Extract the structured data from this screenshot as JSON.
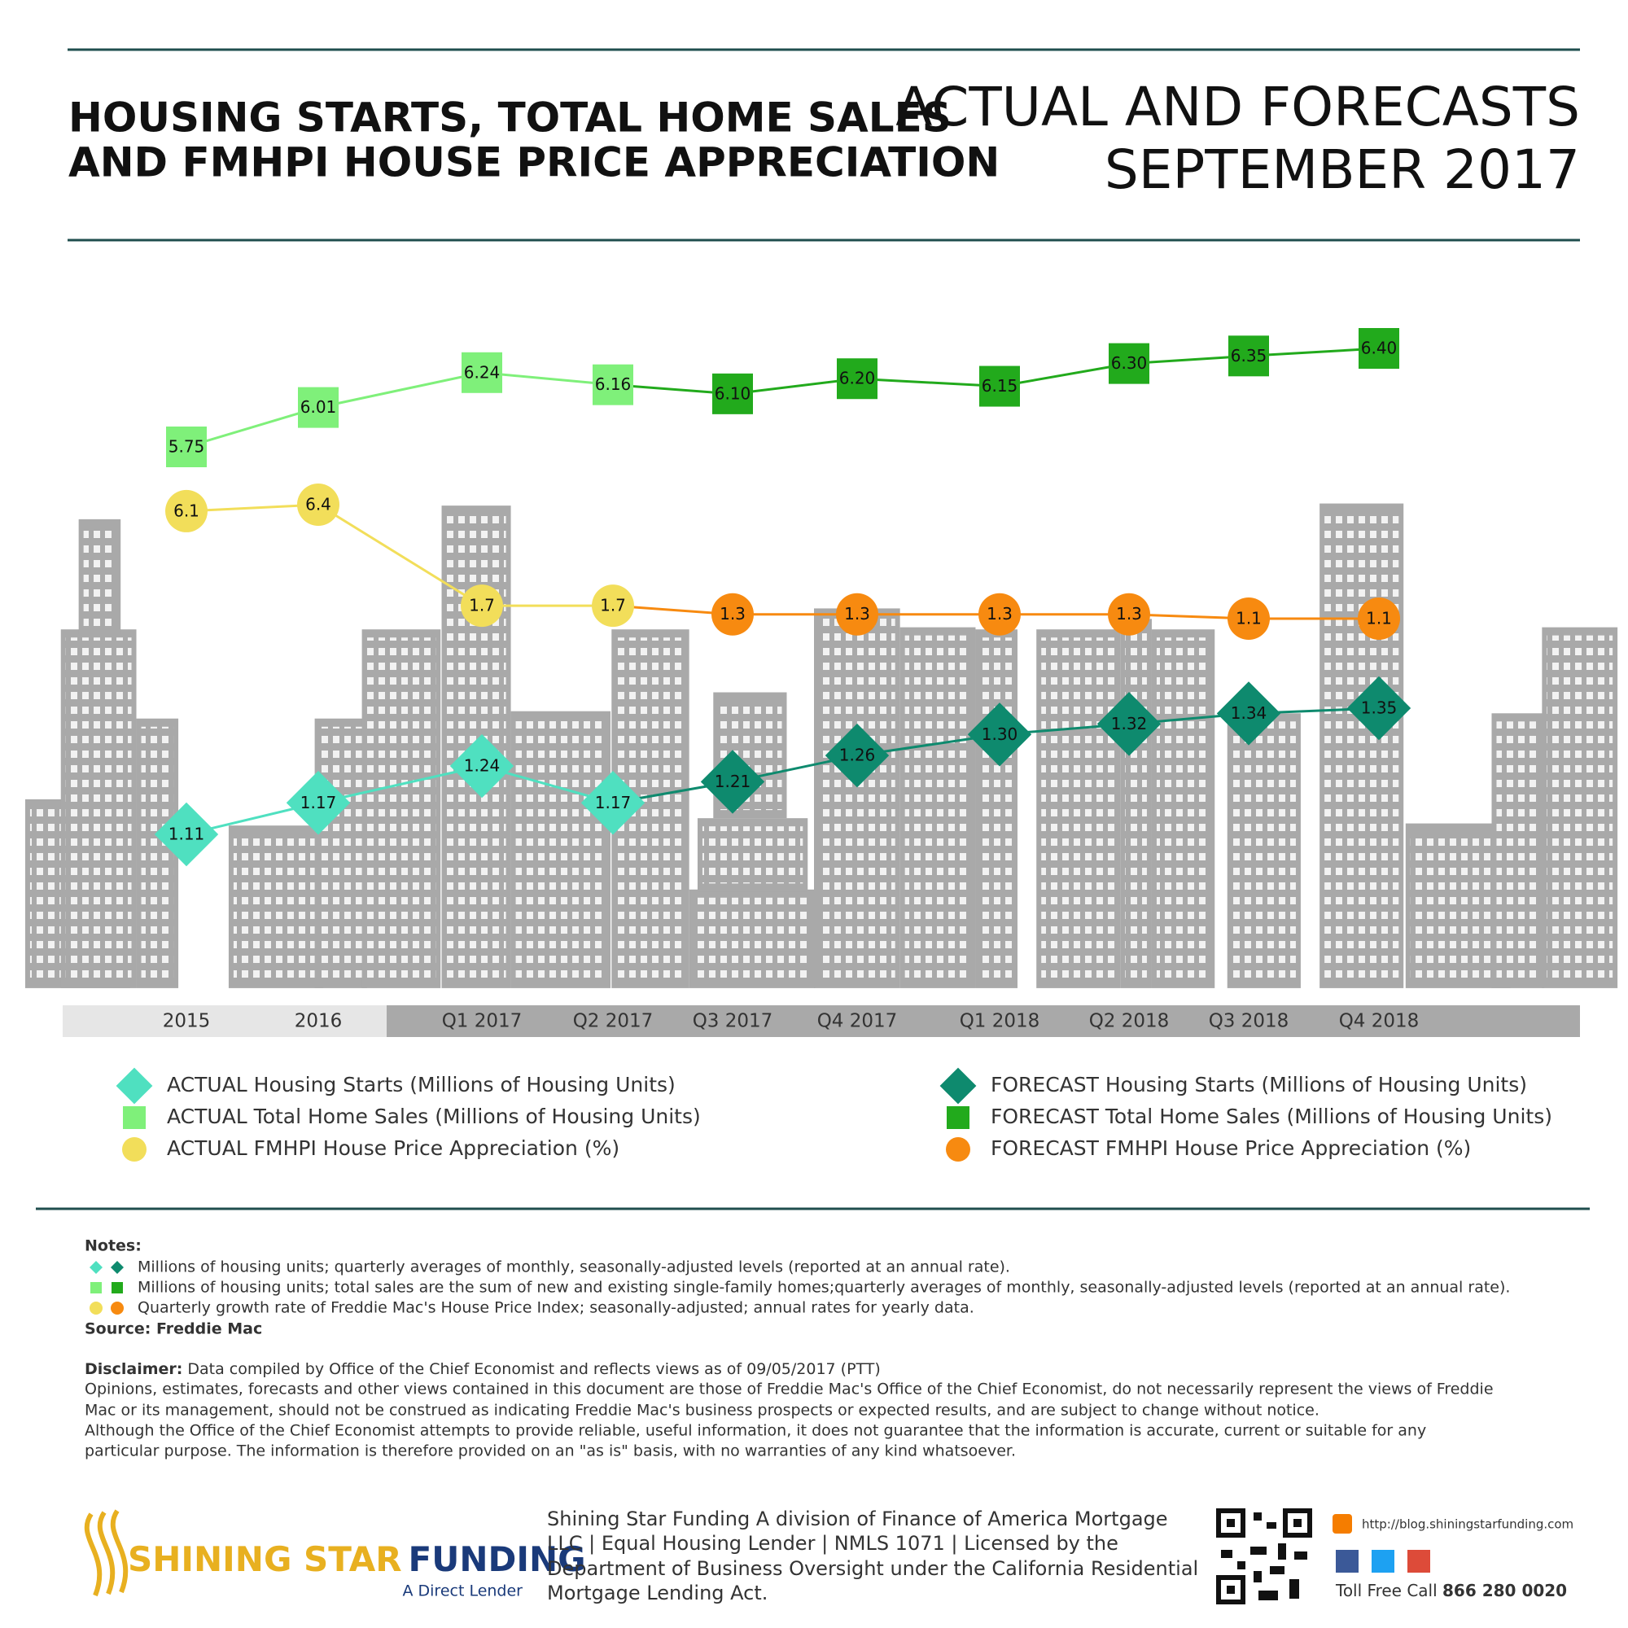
{
  "header": {
    "title_lines": [
      "HOUSING STARTS, TOTAL HOME SALES",
      "AND FMHPI HOUSE PRICE APPRECIATION"
    ],
    "subtitle_lines": [
      "ACTUAL AND FORECASTS",
      "SEPTEMBER 2017"
    ]
  },
  "chart_data": {
    "type": "line",
    "categories": [
      "2015",
      "2016",
      "Q1 2017",
      "Q2 2017",
      "Q3 2017",
      "Q4 2017",
      "Q1 2018",
      "Q2 2018",
      "Q3 2018",
      "Q4 2018"
    ],
    "series": [
      {
        "name": "ACTUAL Housing Starts (Millions of Housing Units)",
        "color": "#4fe0c0",
        "marker": "diamond",
        "values": [
          1.11,
          1.17,
          1.24,
          1.17,
          null,
          null,
          null,
          null,
          null,
          null
        ],
        "value_labels": [
          "1.11",
          "1.17",
          "1.24",
          "1.17",
          null,
          null,
          null,
          null,
          null,
          null
        ]
      },
      {
        "name": "ACTUAL Total Home Sales (Millions of Housing Units)",
        "color": "#7ff07a",
        "marker": "square",
        "values": [
          5.75,
          6.01,
          6.24,
          6.16,
          null,
          null,
          null,
          null,
          null,
          null
        ],
        "value_labels": [
          "5.75",
          "6.01",
          "6.24",
          "6.16",
          null,
          null,
          null,
          null,
          null,
          null
        ]
      },
      {
        "name": "ACTUAL FMHPI House Price Appreciation (%)",
        "color": "#f2de5a",
        "marker": "circle",
        "values": [
          6.1,
          6.4,
          1.7,
          1.7,
          null,
          null,
          null,
          null,
          null,
          null
        ],
        "value_labels": [
          "6.1",
          "6.4",
          "1.7",
          "1.7",
          null,
          null,
          null,
          null,
          null,
          null
        ]
      },
      {
        "name": "FORECAST Housing Starts (Millions of Housing Units)",
        "color": "#0e8a6e",
        "marker": "diamond",
        "values": [
          null,
          null,
          null,
          null,
          1.21,
          1.26,
          1.3,
          1.32,
          1.34,
          1.35
        ],
        "value_labels": [
          null,
          null,
          null,
          null,
          "1.21",
          "1.26",
          "1.30",
          "1.32",
          "1.34",
          "1.35"
        ]
      },
      {
        "name": "FORECAST Total Home Sales (Millions of Housing Units)",
        "color": "#22aa1c",
        "marker": "square",
        "values": [
          null,
          null,
          null,
          null,
          6.1,
          6.2,
          6.15,
          6.3,
          6.35,
          6.4
        ],
        "value_labels": [
          null,
          null,
          null,
          null,
          "6.10",
          "6.20",
          "6.15",
          "6.30",
          "6.35",
          "6.40"
        ]
      },
      {
        "name": "FORECAST FMHPI House Price Appreciation (%)",
        "color": "#f78a10",
        "marker": "circle",
        "values": [
          null,
          null,
          null,
          null,
          1.3,
          1.3,
          1.3,
          1.3,
          1.1,
          1.1
        ],
        "value_labels": [
          null,
          null,
          null,
          null,
          "1.3",
          "1.3",
          "1.3",
          "1.3",
          "1.1",
          "1.1"
        ]
      }
    ]
  },
  "notes": {
    "heading": "Notes:",
    "lines": [
      "Millions of housing units; quarterly averages of monthly, seasonally-adjusted levels (reported at an annual rate).",
      "Millions of housing units; total sales are the sum of new and existing single-family homes;quarterly averages of monthly, seasonally-adjusted levels (reported at an annual rate).",
      "Quarterly growth rate of Freddie Mac's House Price Index; seasonally-adjusted; annual rates for yearly data."
    ],
    "source": "Source: Freddie Mac"
  },
  "disclaimer": {
    "label": "Disclaimer:",
    "first": " Data compiled by Office of the Chief Economist and reflects views as of 09/05/2017 (PTT)",
    "lines": [
      "Opinions, estimates, forecasts and other views contained in this document are those of Freddie Mac's Office of the Chief Economist, do not necessarily represent the views of Freddie",
      "Mac or its management, should not be construed as indicating Freddie Mac's business prospects or expected results, and are subject to change without notice.",
      "Although the Office of the Chief Economist attempts to provide reliable, useful information, it does not guarantee that the information is accurate, current or suitable for any",
      "particular purpose. The information is therefore provided on an \"as is\" basis, with no warranties of any kind whatsoever."
    ]
  },
  "footer": {
    "logo_a": "SHINING STAR",
    "logo_b": "FUNDING",
    "tagline": "A Direct Lender",
    "company_lines": [
      "Shining Star Funding A division of Finance of America Mortgage",
      "LLC | Equal Housing Lender | NMLS 1071 | Licensed by the",
      "Department of Business Oversight under the California Residential",
      "Mortgage Lending Act."
    ],
    "url": "http://blog.shiningstarfunding.com",
    "call_label": "Toll Free Call ",
    "phone": "866 280 0020"
  }
}
